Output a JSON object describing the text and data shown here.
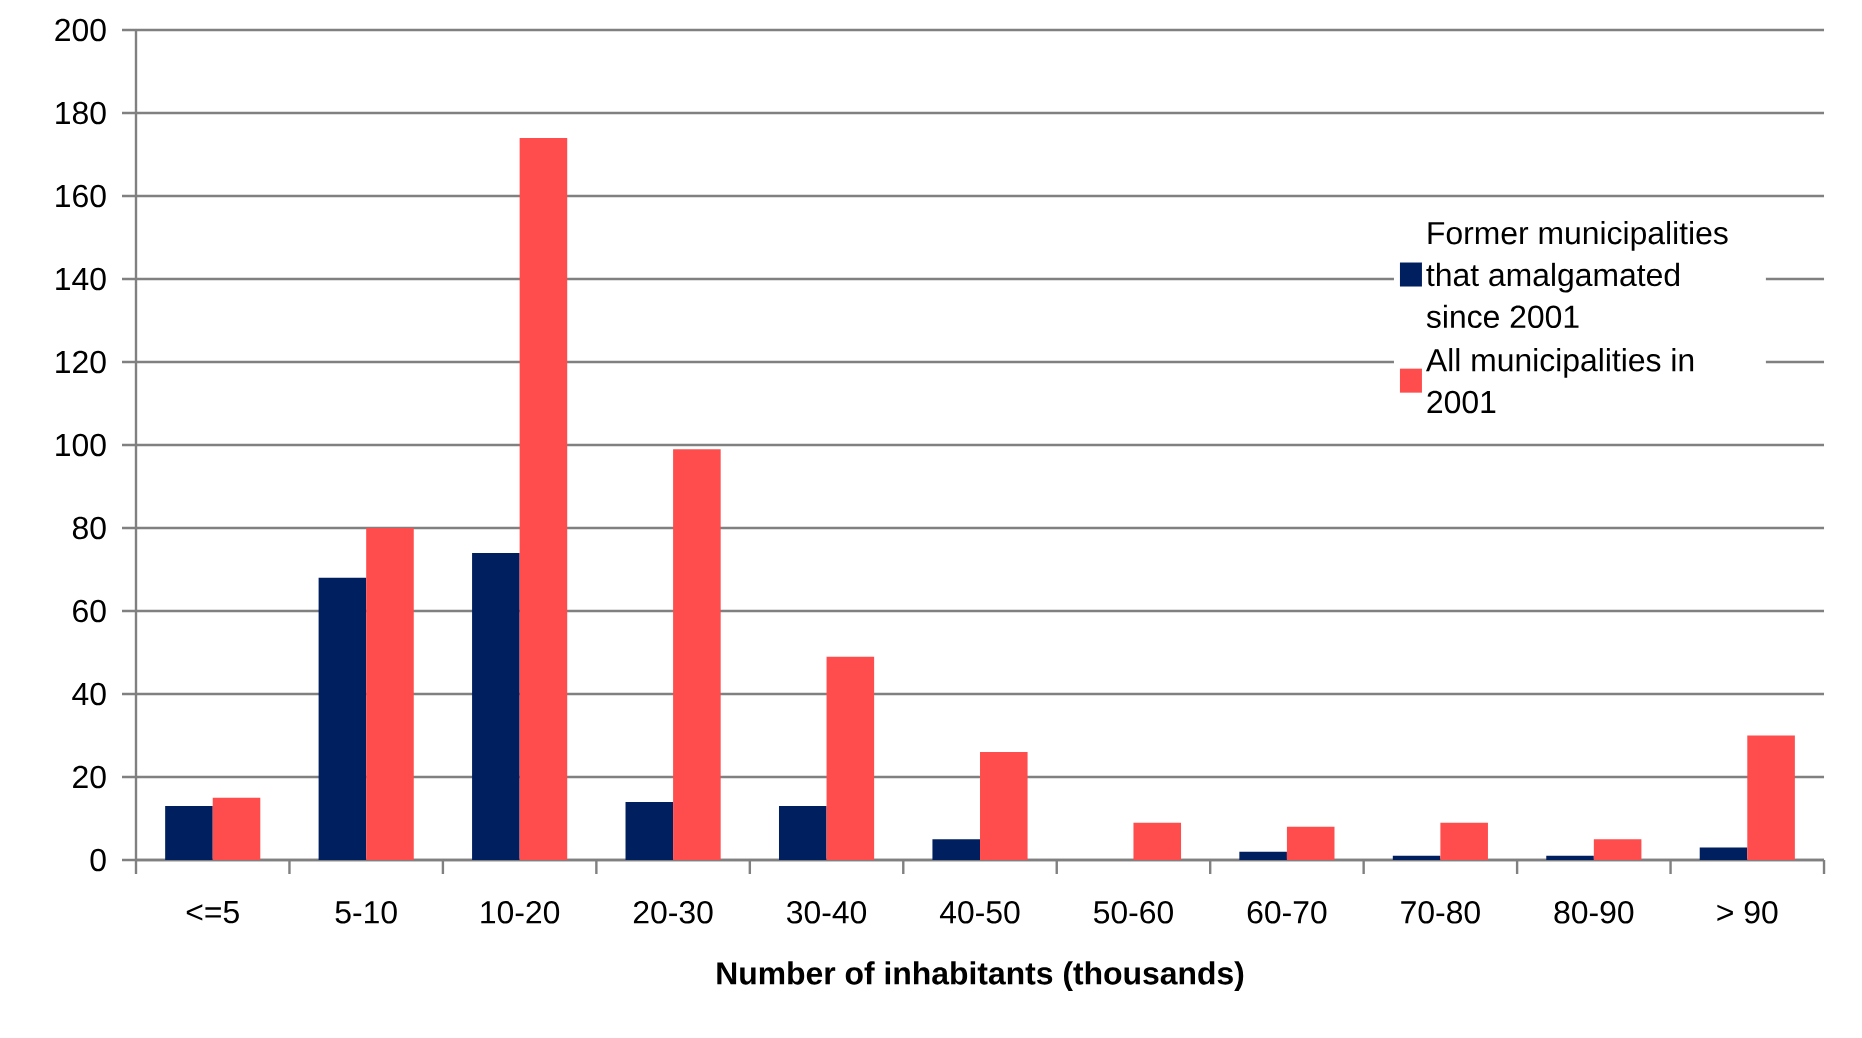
{
  "chart_data": {
    "type": "bar",
    "xlabel": "Number of inhabitants (thousands)",
    "categories": [
      "<=5",
      "5-10",
      "10-20",
      "20-30",
      "30-40",
      "40-50",
      "50-60",
      "60-70",
      "70-80",
      "80-90",
      "> 90"
    ],
    "series": [
      {
        "name": "Former municipalities that amalgamated since 2001",
        "color": "#001f5f",
        "values": [
          13,
          68,
          74,
          14,
          13,
          5,
          0,
          2,
          1,
          1,
          3
        ]
      },
      {
        "name": "All municipalities in 2001",
        "color": "#ff4d4d",
        "values": [
          15,
          80,
          174,
          99,
          49,
          26,
          9,
          8,
          9,
          5,
          30
        ]
      }
    ],
    "ylim": [
      0,
      200
    ],
    "yticks": [
      0,
      20,
      40,
      60,
      80,
      100,
      120,
      140,
      160,
      180,
      200
    ],
    "grid": "y",
    "legend": "right"
  }
}
